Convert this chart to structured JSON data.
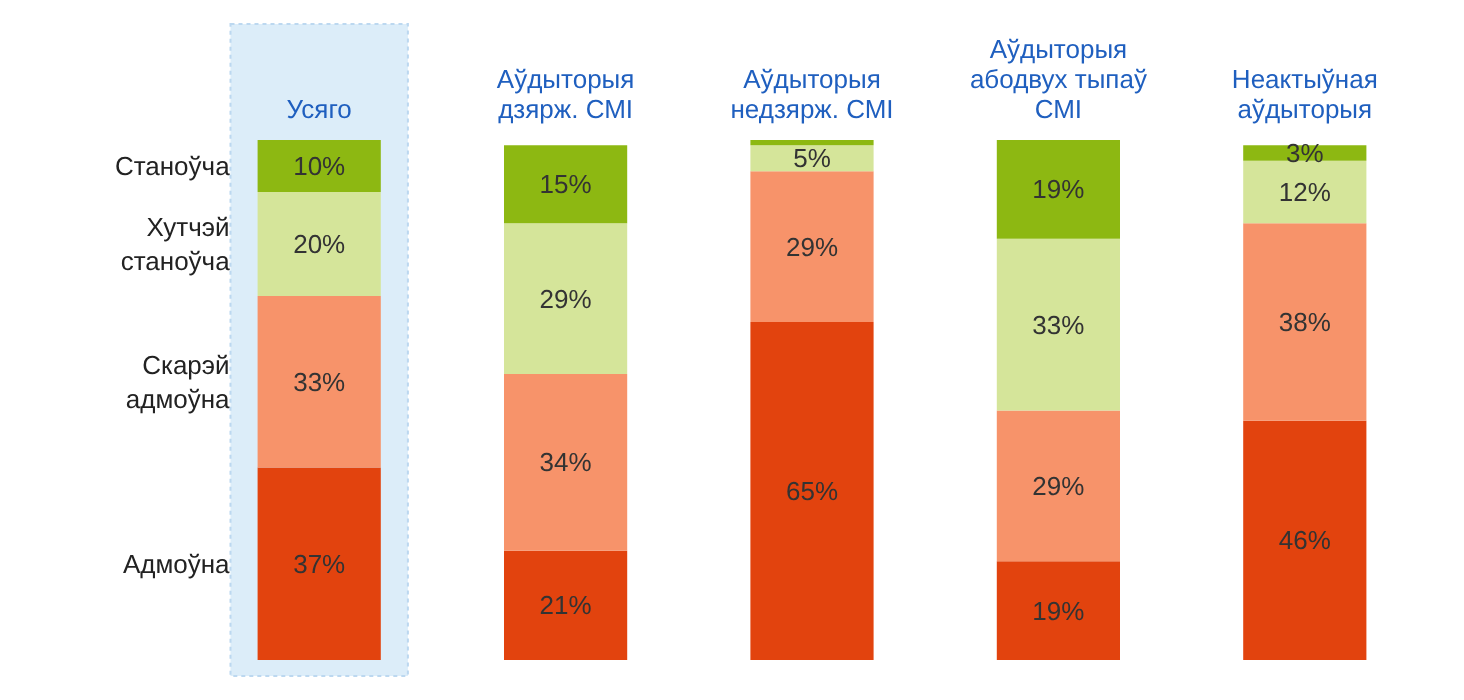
{
  "chart_data": {
    "type": "bar",
    "stacked": true,
    "categories": [
      "Усяго",
      "Аўдыторыя\nдзярж. СМІ",
      "Аўдыторыя\nнедзярж. СМІ",
      "Аўдыторыя\nабодвух тыпаў\nСМІ",
      "Неактыўная\nаўдыторыя"
    ],
    "series": [
      {
        "name": "Адмоўна",
        "color": "#e2430e",
        "values": [
          37,
          21,
          65,
          19,
          46
        ],
        "value_labels": [
          "37%",
          "21%",
          "65%",
          "19%",
          "46%"
        ]
      },
      {
        "name": "Скарэй\nадмоўна",
        "color": "#f7936a",
        "values": [
          33,
          34,
          29,
          29,
          38
        ],
        "value_labels": [
          "33%",
          "34%",
          "29%",
          "29%",
          "38%"
        ]
      },
      {
        "name": "Хутчэй\nстаноўча",
        "color": "#d5e59a",
        "values": [
          20,
          29,
          5,
          33,
          12
        ],
        "value_labels": [
          "20%",
          "29%",
          "5%",
          "33%",
          "12%"
        ]
      },
      {
        "name": "Станоўча",
        "color": "#8db812",
        "values": [
          10,
          15,
          1,
          19,
          3
        ],
        "value_labels": [
          "10%",
          "15%",
          null,
          "19%",
          "3%"
        ]
      }
    ],
    "bands": [
      {
        "axis": "x",
        "from": "Усяго",
        "to": "Усяго",
        "color": "#dcedf9"
      }
    ],
    "legend": false,
    "grid": false
  }
}
